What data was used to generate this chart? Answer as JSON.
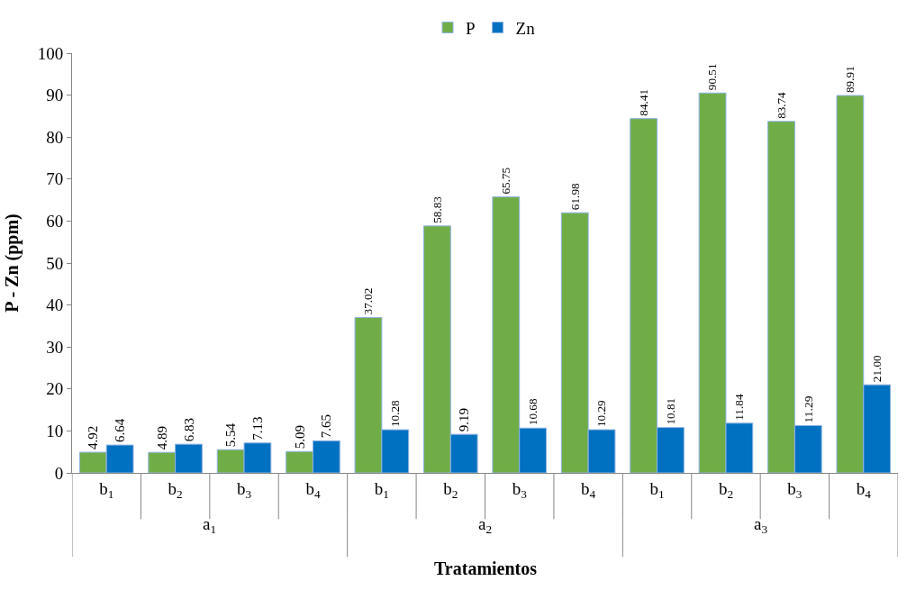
{
  "chart_data": {
    "type": "bar",
    "xlabel": "Tratamientos",
    "ylabel": "P - Zn (ppm)",
    "categories": [
      "b$_{1}$",
      "b$_{2}$",
      "b$_{3}$",
      "b$_{4}$",
      "b$_{1}$",
      "b$_{2}$",
      "b$_{3}$",
      "b$_{4}$",
      "b$_{1}$",
      "b$_{2}$",
      "b$_{3}$",
      "b$_{4}$"
    ],
    "annotations": [
      "a$_{1}$",
      "a$_{2}$",
      "a$_{3}$"
    ],
    "series": [
      {
        "name": "P",
        "color": "#70ad47",
        "values": [
          4.92,
          4.89,
          5.54,
          5.09,
          37.02,
          58.83,
          65.75,
          61.98,
          84.41,
          90.51,
          83.74,
          89.91
        ],
        "value_labels": [
          "4.92",
          "4.89",
          "5.54",
          "5.09",
          "37.02",
          "58.83",
          "65.75",
          "61.98",
          "84.41",
          "90.51",
          "83.74",
          "89.91"
        ]
      },
      {
        "name": "Zn",
        "color": "#0070c0",
        "values": [
          6.64,
          6.83,
          7.13,
          7.65,
          10.28,
          9.19,
          10.68,
          10.29,
          10.81,
          11.84,
          11.29,
          21.0
        ],
        "value_labels": [
          "6.64",
          "6.83",
          "7.13",
          "7.65",
          "10.28",
          "9.19",
          "10.68",
          "10.29",
          "10.81",
          "11.84",
          "11.29",
          "21.00"
        ]
      }
    ],
    "ylim": [
      0,
      100
    ],
    "yticks": [
      0,
      10,
      20,
      30,
      40,
      50,
      60,
      70,
      80,
      90,
      100
    ],
    "grid": false,
    "legend": "top"
  }
}
